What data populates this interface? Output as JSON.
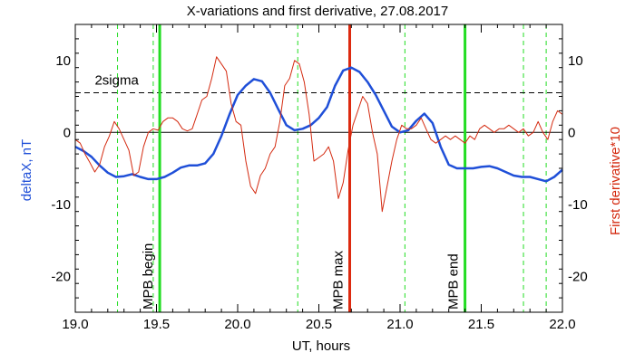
{
  "chart_data": {
    "type": "line",
    "title": "X-variations and first derivative, 27.08.2017",
    "xlabel": "UT, hours",
    "ylabel_left": "deltaX, nT",
    "ylabel_right": "First derivative*10",
    "xlim": [
      19.0,
      22.0
    ],
    "ylim": [
      -25,
      15
    ],
    "x_ticks": [
      "19.0",
      "19.5",
      "20.0",
      "20.5",
      "21.0",
      "21.5",
      "22.0"
    ],
    "y_ticks_left": [
      "10",
      "0",
      "-10",
      "-20"
    ],
    "y_ticks_right": [
      "10",
      "0",
      "-10",
      "-20"
    ],
    "grid": false,
    "legend": "none",
    "colors": {
      "deltaX": "#1f4fd8",
      "derivative": "#d42a10",
      "green_marker": "#22dd22",
      "red_marker": "#dd2a10",
      "axes": "#000000"
    },
    "reference_lines": [
      {
        "label": "2sigma",
        "y": 5.5,
        "style": "dashed",
        "color": "#000000"
      },
      {
        "label": "",
        "y": 0,
        "style": "solid",
        "color": "#000000"
      }
    ],
    "vertical_markers": [
      {
        "label": "MPB begin",
        "x": 19.52,
        "color": "#22dd22",
        "style": "solid",
        "width": 3
      },
      {
        "label": "MPB max",
        "x": 20.69,
        "color": "#dd2a10",
        "style": "solid",
        "width": 3
      },
      {
        "label": "MPB end",
        "x": 21.4,
        "color": "#22dd22",
        "style": "solid",
        "width": 3
      }
    ],
    "dashed_markers": [
      19.26,
      19.48,
      20.37,
      21.03,
      21.76,
      21.9
    ],
    "series": [
      {
        "name": "deltaX, nT",
        "axis": "left",
        "color": "#1f4fd8",
        "x": [
          19.0,
          19.05,
          19.1,
          19.15,
          19.2,
          19.25,
          19.3,
          19.35,
          19.4,
          19.45,
          19.5,
          19.55,
          19.6,
          19.65,
          19.7,
          19.75,
          19.8,
          19.85,
          19.9,
          19.95,
          20.0,
          20.05,
          20.1,
          20.15,
          20.2,
          20.25,
          20.3,
          20.35,
          20.4,
          20.45,
          20.5,
          20.55,
          20.6,
          20.65,
          20.7,
          20.75,
          20.8,
          20.85,
          20.9,
          20.95,
          21.0,
          21.05,
          21.1,
          21.15,
          21.2,
          21.25,
          21.3,
          21.35,
          21.4,
          21.45,
          21.5,
          21.55,
          21.6,
          21.65,
          21.7,
          21.75,
          21.8,
          21.85,
          21.9,
          21.95,
          22.0
        ],
        "y": [
          -2.0,
          -2.6,
          -3.4,
          -4.6,
          -5.6,
          -6.2,
          -6.1,
          -5.8,
          -6.2,
          -6.5,
          -6.5,
          -6.2,
          -5.6,
          -4.9,
          -4.6,
          -4.6,
          -4.3,
          -3.0,
          -0.5,
          2.5,
          5.2,
          6.5,
          7.4,
          7.1,
          5.5,
          3.2,
          1.0,
          0.3,
          0.5,
          1.0,
          2.0,
          3.5,
          6.5,
          8.6,
          9.0,
          8.4,
          7.0,
          5.2,
          3.0,
          0.8,
          0.0,
          0.3,
          1.6,
          2.6,
          1.3,
          -2.0,
          -4.5,
          -5.0,
          -5.0,
          -5.0,
          -4.8,
          -4.7,
          -5.0,
          -5.5,
          -6.0,
          -6.2,
          -6.2,
          -6.5,
          -6.8,
          -6.2,
          -5.2
        ]
      },
      {
        "name": "First derivative*10",
        "axis": "right",
        "color": "#d42a10",
        "x": [
          19.0,
          19.03,
          19.06,
          19.09,
          19.12,
          19.15,
          19.18,
          19.21,
          19.24,
          19.27,
          19.3,
          19.33,
          19.36,
          19.39,
          19.42,
          19.45,
          19.48,
          19.51,
          19.54,
          19.57,
          19.6,
          19.63,
          19.66,
          19.69,
          19.72,
          19.75,
          19.78,
          19.81,
          19.84,
          19.87,
          19.9,
          19.93,
          19.96,
          19.99,
          20.02,
          20.05,
          20.08,
          20.11,
          20.14,
          20.17,
          20.2,
          20.23,
          20.26,
          20.29,
          20.32,
          20.35,
          20.38,
          20.41,
          20.44,
          20.47,
          20.5,
          20.53,
          20.56,
          20.59,
          20.62,
          20.65,
          20.68,
          20.71,
          20.74,
          20.77,
          20.8,
          20.83,
          20.86,
          20.89,
          20.92,
          20.95,
          20.98,
          21.01,
          21.04,
          21.07,
          21.1,
          21.13,
          21.16,
          21.19,
          21.22,
          21.25,
          21.28,
          21.31,
          21.34,
          21.37,
          21.4,
          21.43,
          21.46,
          21.49,
          21.52,
          21.55,
          21.58,
          21.61,
          21.64,
          21.67,
          21.7,
          21.73,
          21.76,
          21.79,
          21.82,
          21.85,
          21.88,
          21.91,
          21.94,
          21.97,
          22.0
        ],
        "y": [
          -1.0,
          -1.5,
          -3.0,
          -4.2,
          -5.5,
          -4.5,
          -2.0,
          -0.5,
          1.5,
          0.5,
          -1.0,
          -2.5,
          -6.0,
          -5.5,
          -2.0,
          0.0,
          0.5,
          0.3,
          1.5,
          2.0,
          2.0,
          1.5,
          0.5,
          0.2,
          0.5,
          2.5,
          4.5,
          5.0,
          7.5,
          10.5,
          9.5,
          8.5,
          4.0,
          1.5,
          1.0,
          -4.0,
          -7.5,
          -8.5,
          -6.0,
          -5.0,
          -3.0,
          -2.0,
          1.5,
          6.5,
          7.5,
          10.0,
          9.5,
          7.0,
          2.5,
          -4.0,
          -3.5,
          -3.0,
          -2.0,
          -4.0,
          -9.2,
          -7.0,
          -2.5,
          1.0,
          3.0,
          5.0,
          4.0,
          0.0,
          -3.0,
          -11.0,
          -7.5,
          -4.0,
          -1.0,
          1.0,
          0.5,
          0.5,
          1.0,
          2.0,
          0.5,
          -1.0,
          -1.5,
          -1.0,
          -0.5,
          -1.0,
          -0.5,
          -1.0,
          -1.5,
          -0.5,
          -1.0,
          0.5,
          1.0,
          0.5,
          0.0,
          0.5,
          0.5,
          1.0,
          0.5,
          0.0,
          0.5,
          -0.5,
          0.0,
          1.5,
          0.0,
          -1.0,
          1.5,
          3.0,
          2.5
        ]
      }
    ]
  }
}
